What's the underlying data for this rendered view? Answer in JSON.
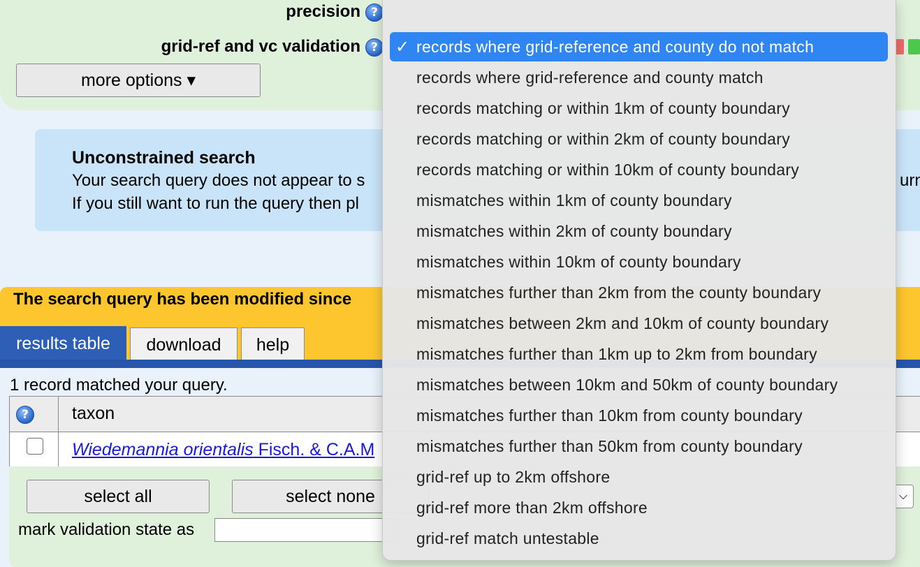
{
  "filters": {
    "precision_label": "precision",
    "validation_label": "grid-ref and vc validation",
    "help_glyph": "?",
    "more_options_label": "more options ▾"
  },
  "info": {
    "title": "Unconstrained search",
    "line1": "Your search query does not appear to s",
    "line2": "If you still want to run the query then pl",
    "right_fragment": "urne"
  },
  "warning": {
    "text": "The search query has been modified since"
  },
  "tabs": [
    {
      "label": "results table",
      "active": true
    },
    {
      "label": "download",
      "active": false
    },
    {
      "label": "help",
      "active": false
    }
  ],
  "results": {
    "count_text": "1 record matched your query.",
    "header_taxon": "taxon",
    "row_taxon_italic": "Wiedemannia orientalis",
    "row_taxon_author": " Fisch. & C.A.M"
  },
  "actions": {
    "select_all": "select all",
    "select_none": "select none",
    "mark_label": "mark validation state as",
    "mini_select_glyph": "⌵"
  },
  "dropdown": {
    "check_glyph": "✓",
    "options": [
      "records where grid-reference and county do not match",
      "records where grid-reference and county match",
      "records matching or within 1km of county boundary",
      "records matching or within 2km of county boundary",
      "records matching or within 10km of county boundary",
      "mismatches within 1km of county boundary",
      "mismatches within 2km of county boundary",
      "mismatches within 10km of county boundary",
      "mismatches further than 2km from the county boundary",
      "mismatches between 2km and 10km of county boundary",
      "mismatches further than 1km up to 2km from boundary",
      "mismatches between 10km and 50km of county boundary",
      "mismatches further than 10km from county boundary",
      "mismatches further than 50km from county boundary",
      "grid-ref up to 2km offshore",
      "grid-ref more than 2km offshore",
      "grid-ref match untestable"
    ],
    "selected_index": 0
  },
  "colors": {
    "accent": "#2f86f3",
    "tab_active": "#2c5fb5",
    "warning": "#fdc62e",
    "panel_green": "#dff1da",
    "info_blue": "#c9e4f8",
    "link": "#1a1ad9"
  }
}
